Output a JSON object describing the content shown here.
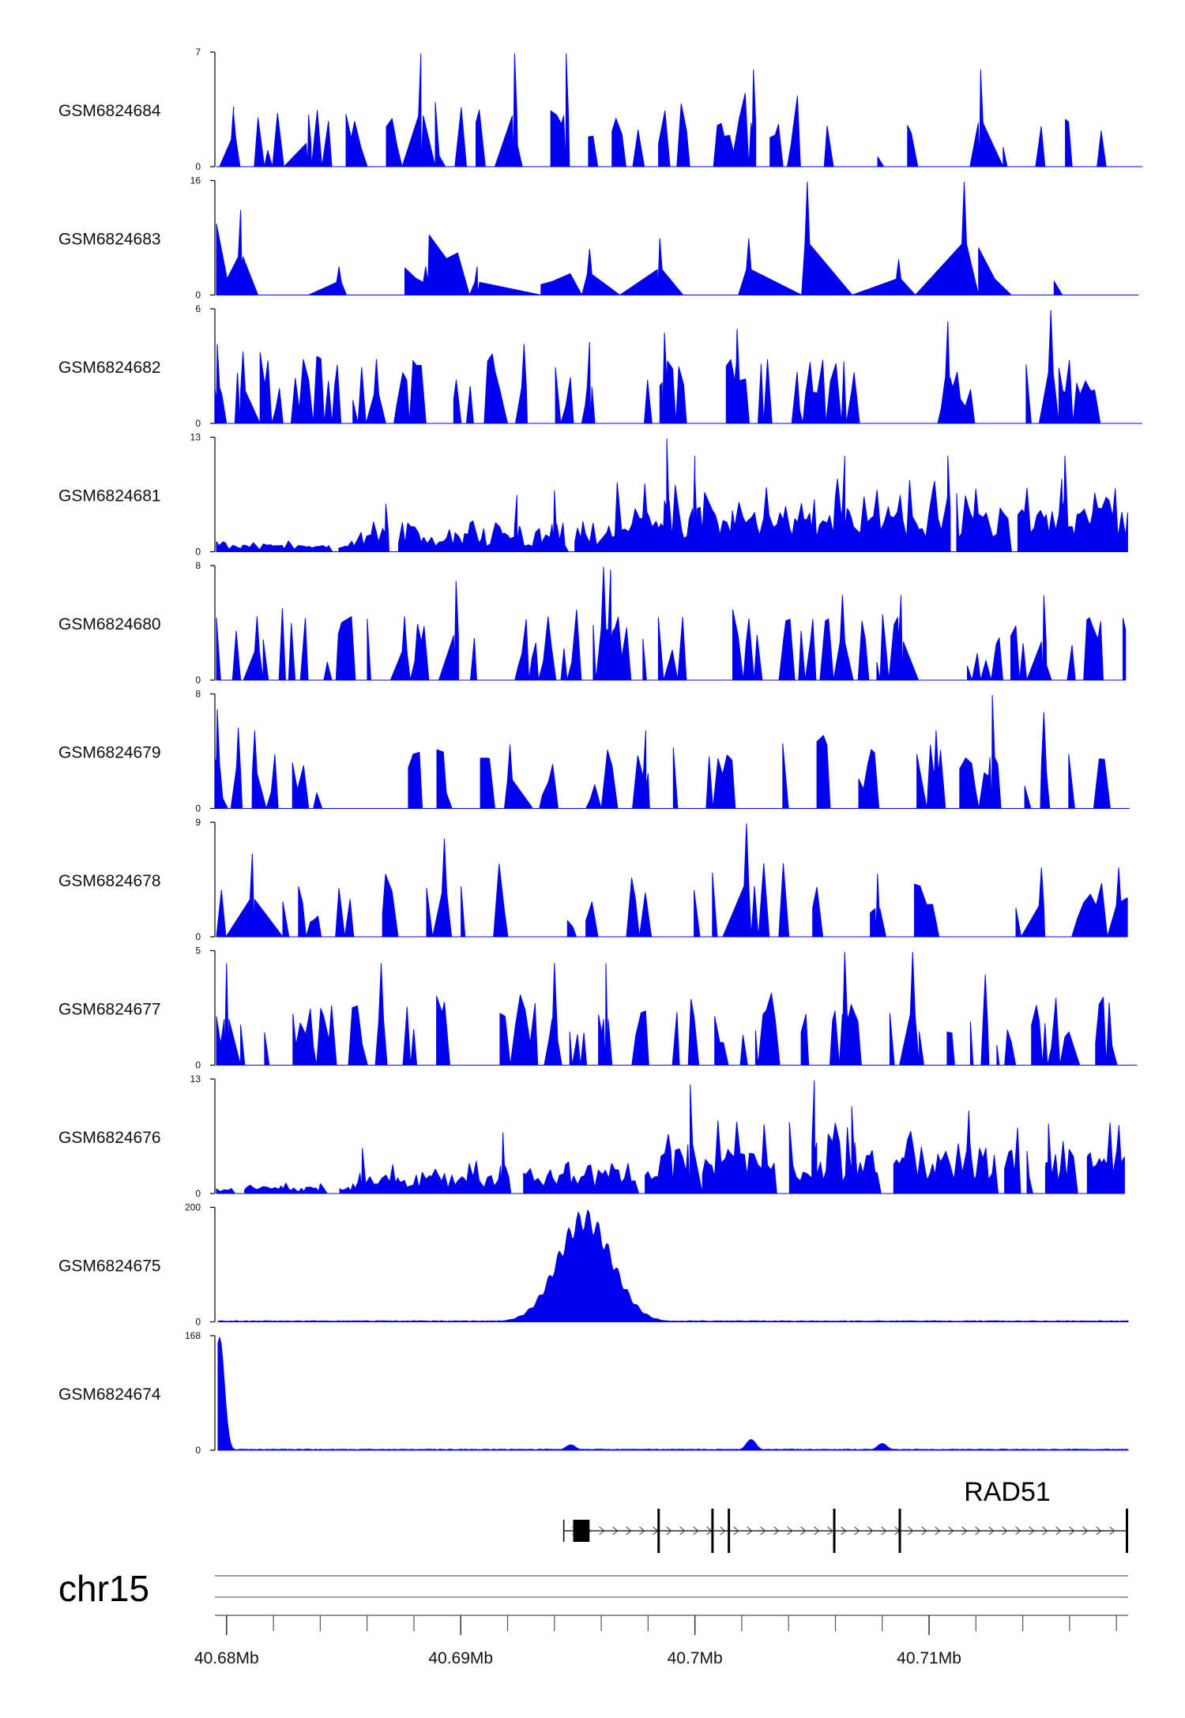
{
  "chart_data": {
    "type": "area",
    "chromosome": "chr15",
    "region_mb": [
      40.6795,
      40.7185
    ],
    "coordinate_ticks": [
      {
        "value": 40.68,
        "label": "40.68Mb"
      },
      {
        "value": 40.69,
        "label": "40.69Mb"
      },
      {
        "value": 40.7,
        "label": "40.7Mb"
      },
      {
        "value": 40.71,
        "label": "40.71Mb"
      }
    ],
    "minor_tick_step_mb": 0.002,
    "color": "#0000ee",
    "tracks": [
      {
        "name": "GSM6824684",
        "ymax": 7,
        "ymax_label": "7",
        "ymin_label": "0",
        "seed": 684,
        "style": "sparse",
        "peaks": [
          [
            40.6803,
            3.7
          ],
          [
            40.6835,
            3.2
          ],
          [
            40.6883,
            7.0
          ],
          [
            40.6923,
            7.0
          ],
          [
            40.6945,
            7.0
          ],
          [
            40.7025,
            6.0
          ],
          [
            40.7122,
            6.0
          ]
        ]
      },
      {
        "name": "GSM6824683",
        "ymax": 16,
        "ymax_label": "16",
        "ymin_label": "0",
        "seed": 683,
        "style": "veryspread",
        "peaks": [
          [
            40.6806,
            12.0
          ],
          [
            40.6848,
            4.0
          ],
          [
            40.6885,
            4.0
          ],
          [
            40.6907,
            4.0
          ],
          [
            40.6955,
            6.5
          ],
          [
            40.6985,
            8.0
          ],
          [
            40.7023,
            8.0
          ],
          [
            40.7048,
            16.0
          ],
          [
            40.7087,
            5.0
          ],
          [
            40.7115,
            16.0
          ]
        ]
      },
      {
        "name": "GSM6824682",
        "ymax": 6,
        "ymax_label": "6",
        "ymin_label": "0",
        "seed": 682,
        "style": "medium",
        "peaks": [
          [
            40.6796,
            4.2
          ],
          [
            40.6807,
            3.8
          ],
          [
            40.6864,
            3.4
          ],
          [
            40.6927,
            4.2
          ],
          [
            40.6955,
            4.3
          ],
          [
            40.6987,
            4.8
          ],
          [
            40.7018,
            5.0
          ],
          [
            40.7108,
            5.4
          ],
          [
            40.7152,
            6.0
          ]
        ]
      },
      {
        "name": "GSM6824681",
        "ymax": 13,
        "ymax_label": "13",
        "ymin_label": "0",
        "seed": 681,
        "style": "dense",
        "peaks": [
          [
            40.6868,
            5.5
          ],
          [
            40.6924,
            6.5
          ],
          [
            40.694,
            7.0
          ],
          [
            40.6988,
            13.0
          ],
          [
            40.7,
            11.0
          ],
          [
            40.7064,
            11.0
          ],
          [
            40.7108,
            11.0
          ],
          [
            40.7158,
            11.0
          ]
        ]
      },
      {
        "name": "GSM6824680",
        "ymax": 8,
        "ymax_label": "8",
        "ymin_label": "0",
        "seed": 680,
        "style": "medium",
        "peaks": [
          [
            40.6813,
            4.5
          ],
          [
            40.6876,
            4.5
          ],
          [
            40.6898,
            7.0
          ],
          [
            40.6961,
            8.0
          ],
          [
            40.6964,
            7.8
          ],
          [
            40.7063,
            6.0
          ],
          [
            40.7088,
            6.0
          ],
          [
            40.7149,
            6.0
          ]
        ]
      },
      {
        "name": "GSM6824679",
        "ymax": 8,
        "ymax_label": "8",
        "ymin_label": "0",
        "seed": 679,
        "style": "sparse",
        "peaks": [
          [
            40.6796,
            7.0
          ],
          [
            40.6805,
            5.7
          ],
          [
            40.6812,
            5.5
          ],
          [
            40.6921,
            4.5
          ],
          [
            40.6979,
            5.5
          ],
          [
            40.7103,
            5.5
          ],
          [
            40.7127,
            8.0
          ],
          [
            40.7149,
            6.8
          ]
        ]
      },
      {
        "name": "GSM6824678",
        "ymax": 9,
        "ymax_label": "9",
        "ymin_label": "0",
        "seed": 678,
        "style": "sparse",
        "peaks": [
          [
            40.6811,
            6.6
          ],
          [
            40.6893,
            7.8
          ],
          [
            40.7022,
            9.0
          ],
          [
            40.7078,
            5.0
          ],
          [
            40.7148,
            5.5
          ],
          [
            40.7181,
            5.5
          ]
        ]
      },
      {
        "name": "GSM6824677",
        "ymax": 5,
        "ymax_label": "5",
        "ymin_label": "0",
        "seed": 677,
        "style": "medium",
        "peaks": [
          [
            40.68,
            4.5
          ],
          [
            40.6866,
            4.5
          ],
          [
            40.694,
            4.5
          ],
          [
            40.6962,
            4.5
          ],
          [
            40.7064,
            5.0
          ],
          [
            40.7093,
            5.0
          ],
          [
            40.7124,
            4.0
          ]
        ]
      },
      {
        "name": "GSM6824676",
        "ymax": 13,
        "ymax_label": "13",
        "ymin_label": "0",
        "seed": 676,
        "style": "dense",
        "peaks": [
          [
            40.6858,
            5.2
          ],
          [
            40.6918,
            7.0
          ],
          [
            40.6998,
            12.5
          ],
          [
            40.7051,
            13.0
          ],
          [
            40.7067,
            10.0
          ],
          [
            40.7117,
            9.5
          ],
          [
            40.7151,
            8.0
          ]
        ]
      },
      {
        "name": "GSM6824675",
        "ymax": 200,
        "ymax_label": "200",
        "ymin_label": "0",
        "seed": 675,
        "style": "peak",
        "peaks": [
          [
            40.6953,
            200.0
          ]
        ]
      },
      {
        "name": "GSM6824674",
        "ymax": 168,
        "ymax_label": "168",
        "ymin_label": "0",
        "seed": 674,
        "style": "peak",
        "peaks": [
          [
            40.6797,
            168.0
          ],
          [
            40.6947,
            8.0
          ],
          [
            40.7024,
            16.0
          ],
          [
            40.708,
            10.0
          ]
        ]
      }
    ],
    "gene": {
      "name": "RAD51",
      "strand": "+",
      "start_mb": 40.6944,
      "end_mb": 40.7185,
      "exons_mb": [
        [
          40.6948,
          40.6955
        ],
        [
          40.6984,
          40.6985
        ],
        [
          40.7007,
          40.7008
        ],
        [
          40.7014,
          40.7015
        ],
        [
          40.7059,
          40.706
        ],
        [
          40.7087,
          40.7088
        ],
        [
          40.7184,
          40.7185
        ]
      ]
    }
  }
}
